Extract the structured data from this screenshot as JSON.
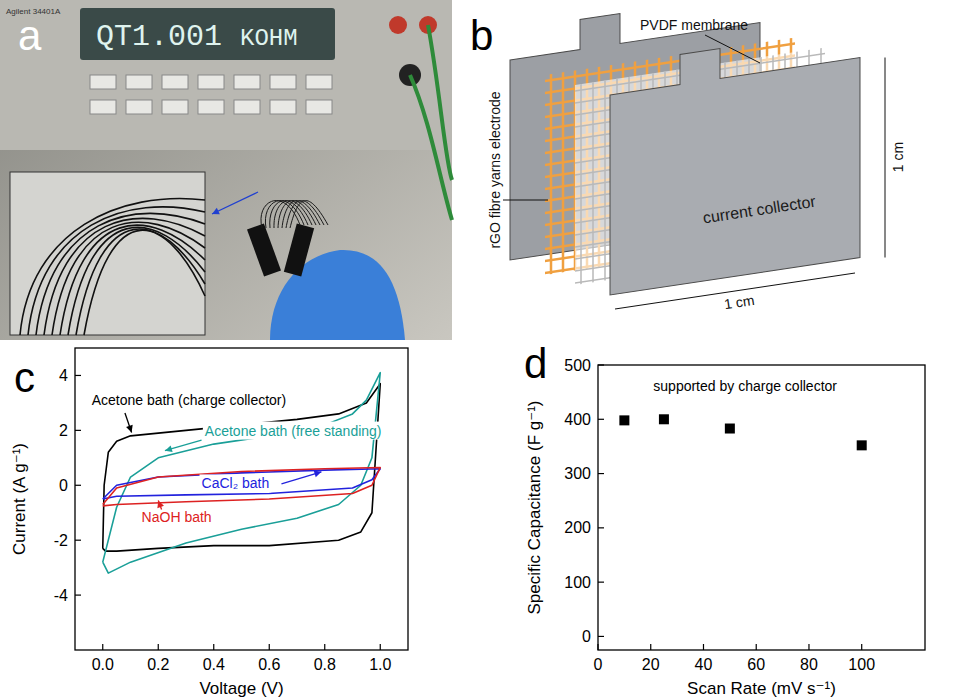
{
  "panel_letters": [
    "a",
    "b",
    "c",
    "d"
  ],
  "photo": {
    "brand": "Agilent 34401A",
    "display": "QT1.001",
    "unit": "KOHM"
  },
  "diagram": {
    "membrane_label": "PVDF membrane",
    "electrode_label": "rGO fibre yarns electrode",
    "collector_label": "current collector",
    "height_label": "1 cm",
    "width_label": "1 cm"
  },
  "chart_data": [
    {
      "type": "line",
      "x_label": "Voltage (V)",
      "y_label": "Current (A g⁻¹)",
      "xlim": [
        -0.1,
        1.1
      ],
      "ylim": [
        -6,
        5
      ],
      "xticks": [
        {
          "value": 0,
          "label": "0.0"
        },
        0.2,
        0.4,
        0.6,
        0.8,
        {
          "value": 1,
          "label": "1.0"
        }
      ],
      "yticks": [
        -4,
        -2,
        0,
        2,
        4
      ],
      "series": [
        {
          "name": "Acetone bath (charge collector)",
          "color": "#000000",
          "x": [
            0.0,
            0.005,
            0.02,
            0.05,
            0.1,
            0.3,
            0.5,
            0.7,
            0.85,
            0.95,
            1.0,
            0.97,
            0.93,
            0.85,
            0.6,
            0.4,
            0.2,
            0.05,
            0.01,
            0.0
          ],
          "values": [
            -2.3,
            0.0,
            1.2,
            1.6,
            1.8,
            2.0,
            2.2,
            2.4,
            2.6,
            3.0,
            3.7,
            -1.0,
            -1.7,
            -2.0,
            -2.2,
            -2.2,
            -2.3,
            -2.4,
            -2.4,
            -2.3
          ]
        },
        {
          "name": "Acetone bath (free standing)",
          "color": "#1a9f98",
          "x": [
            0.0,
            0.05,
            0.1,
            0.2,
            0.4,
            0.6,
            0.8,
            0.9,
            0.95,
            1.0,
            0.97,
            0.93,
            0.85,
            0.7,
            0.5,
            0.3,
            0.1,
            0.02,
            0.0
          ],
          "values": [
            -2.8,
            -0.8,
            0.3,
            1.0,
            1.5,
            1.8,
            2.2,
            2.6,
            3.1,
            4.1,
            1.0,
            0.0,
            -0.7,
            -1.2,
            -1.6,
            -2.1,
            -2.8,
            -3.2,
            -2.8
          ]
        },
        {
          "name": "CaCl₂ bath",
          "color": "#2222dd",
          "x": [
            0.0,
            0.05,
            0.2,
            0.5,
            0.8,
            1.0,
            0.97,
            0.9,
            0.6,
            0.3,
            0.05,
            0.0
          ],
          "values": [
            -0.5,
            0.0,
            0.3,
            0.45,
            0.55,
            0.6,
            0.2,
            -0.1,
            -0.3,
            -0.35,
            -0.4,
            -0.5
          ]
        },
        {
          "name": "NaOH bath",
          "color": "#dd2222",
          "x": [
            0.0,
            0.05,
            0.2,
            0.5,
            0.8,
            1.0,
            0.97,
            0.9,
            0.6,
            0.3,
            0.05,
            0.0
          ],
          "values": [
            -0.7,
            -0.1,
            0.3,
            0.5,
            0.6,
            0.65,
            0.0,
            -0.3,
            -0.5,
            -0.6,
            -0.7,
            -0.75
          ]
        }
      ]
    },
    {
      "type": "scatter",
      "x_label": "Scan Rate (mV s⁻¹)",
      "y_label": "Specific Capacitance (F g⁻¹)",
      "annotation": "supported by charge collector",
      "xlim": [
        0,
        124
      ],
      "ylim": [
        -25,
        500
      ],
      "xticks": [
        0,
        20,
        40,
        60,
        80,
        100
      ],
      "yticks": [
        0,
        100,
        200,
        300,
        400,
        500
      ],
      "x": [
        10,
        25,
        50,
        100
      ],
      "values": [
        398,
        400,
        383,
        352
      ],
      "color": "#000000",
      "marker": "square"
    }
  ]
}
